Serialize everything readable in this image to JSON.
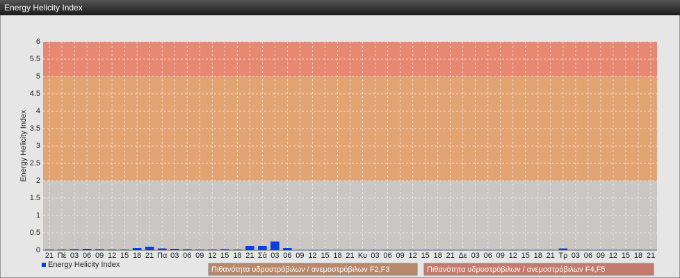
{
  "chart_data": {
    "type": "bar",
    "title": "Energy Helicity Index",
    "y_label": "Energy Helicity Index",
    "categories": [
      "21",
      "Πέ",
      "03",
      "06",
      "09",
      "12",
      "15",
      "18",
      "21",
      "Πα",
      "03",
      "06",
      "09",
      "12",
      "15",
      "18",
      "21",
      "Σά",
      "03",
      "06",
      "09",
      "12",
      "15",
      "18",
      "21",
      "Κυ",
      "03",
      "06",
      "09",
      "12",
      "15",
      "18",
      "21",
      "Δε",
      "03",
      "06",
      "09",
      "12",
      "15",
      "18",
      "21",
      "Τρ",
      "03",
      "06",
      "09",
      "12",
      "15",
      "18",
      "21"
    ],
    "series": [
      {
        "name": "Energy Helicity Index",
        "color": "#0a3ee0",
        "values": [
          0.02,
          0.02,
          0.03,
          0.04,
          0.03,
          0.02,
          0.02,
          0.06,
          0.1,
          0.05,
          0.04,
          0.03,
          0.02,
          0.02,
          0.03,
          0.02,
          0.12,
          0.12,
          0.25,
          0.06,
          0.01,
          0.01,
          0.01,
          0.01,
          0.01,
          0.01,
          0.01,
          0.01,
          0.01,
          0.01,
          0.01,
          0.01,
          0.01,
          0.01,
          0.01,
          0.01,
          0.01,
          0.01,
          0.01,
          0.01,
          0.01,
          0.05,
          0.01,
          0.01,
          0.01,
          0.01,
          0.01,
          0.01,
          0.01
        ]
      }
    ],
    "ylim": [
      0,
      6
    ],
    "yticks": [
      0,
      0.5,
      1,
      1.5,
      2,
      2.5,
      3,
      3.5,
      4,
      4.5,
      5,
      5.5,
      6
    ],
    "grid": true,
    "zones": [
      {
        "from": 0,
        "to": 2,
        "color": "#c9c6c3"
      },
      {
        "from": 2,
        "to": 5,
        "color": "#e3a474",
        "legend_color": "#b8886a",
        "label": "Πιθανότητα υδροστρόβιλων / ανεμοστρόβιλων F2,F3"
      },
      {
        "from": 5,
        "to": 6,
        "color": "#e68872",
        "legend_color": "#c47a6c",
        "label": "Πιθανότητα υδροστρόβιλων / ανεμοστρόβιλων F4,F5"
      }
    ]
  }
}
